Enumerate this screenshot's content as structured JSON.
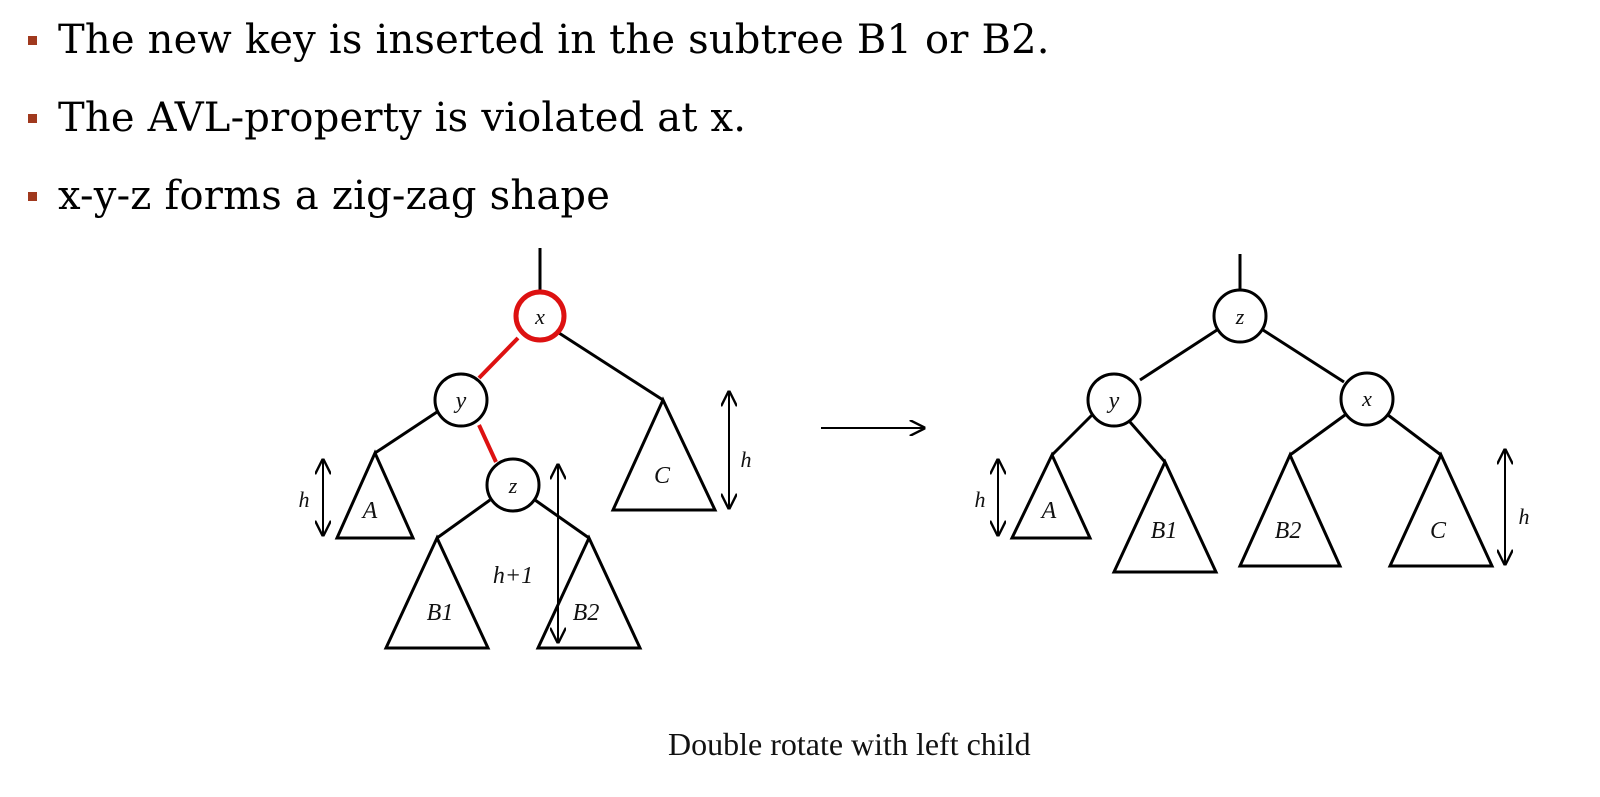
{
  "bullets": [
    "The new key is inserted in the subtree B1 or B2.",
    "The AVL-property is violated at x.",
    "x-y-z forms a zig-zag shape"
  ],
  "colors": {
    "bullet_marker": "#a0391e",
    "highlight": "#dd1111",
    "ink": "#000000"
  },
  "before_tree": {
    "nodes": {
      "x": "x",
      "y": "y",
      "z": "z"
    },
    "subtrees": {
      "A": "A",
      "B1": "B1",
      "B2": "B2",
      "C": "C"
    },
    "heights": {
      "left": "h",
      "middle": "h+1",
      "right": "h"
    }
  },
  "after_tree": {
    "nodes": {
      "z": "z",
      "y": "y",
      "x": "x"
    },
    "subtrees": {
      "A": "A",
      "B1": "B1",
      "B2": "B2",
      "C": "C"
    },
    "heights": {
      "left": "h",
      "right": "h"
    }
  },
  "caption": "Double rotate with left child"
}
